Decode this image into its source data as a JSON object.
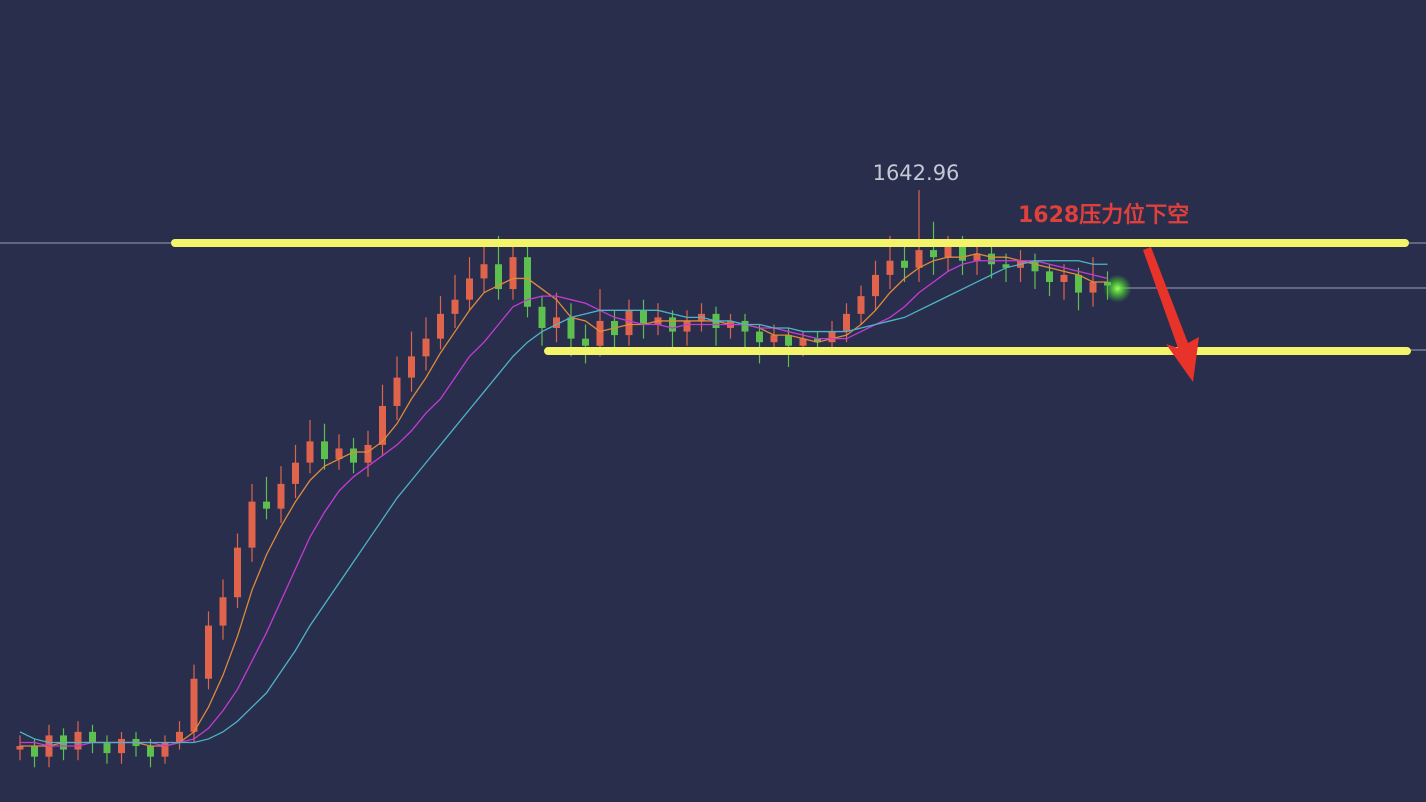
{
  "chart_data": {
    "type": "candlestick",
    "ylim": [
      1470.2,
      1696.6
    ],
    "up_color": "#e0644c",
    "down_color": "#5cbf4e",
    "open": [
      1485,
      1486,
      1483,
      1489,
      1485,
      1490,
      1487,
      1484,
      1488,
      1486,
      1483,
      1487,
      1490,
      1505,
      1520,
      1528,
      1542,
      1555,
      1553,
      1560,
      1566,
      1572,
      1567,
      1570,
      1566,
      1571,
      1582,
      1590,
      1596,
      1601,
      1608,
      1612,
      1618,
      1622,
      1615,
      1624,
      1610,
      1604,
      1607,
      1601,
      1599,
      1606,
      1602,
      1609,
      1605,
      1607,
      1603,
      1606,
      1608,
      1604,
      1606,
      1603,
      1600,
      1602,
      1599,
      1601,
      1600,
      1603,
      1608,
      1613,
      1619,
      1623,
      1621,
      1626,
      1624,
      1627,
      1623,
      1625,
      1622,
      1621,
      1623,
      1620,
      1617,
      1619,
      1614,
      1617
    ],
    "high": [
      1489,
      1488,
      1492,
      1491,
      1493,
      1492,
      1489,
      1490,
      1490,
      1488,
      1489,
      1493,
      1509,
      1524,
      1533,
      1546,
      1560,
      1562,
      1565,
      1571,
      1578,
      1577,
      1574,
      1573,
      1575,
      1588,
      1596,
      1603,
      1607,
      1613,
      1619,
      1624,
      1628,
      1630,
      1629,
      1627,
      1613,
      1614,
      1611,
      1605,
      1615,
      1609,
      1612,
      1612,
      1611,
      1609,
      1609,
      1611,
      1610,
      1608,
      1608,
      1605,
      1605,
      1604,
      1603,
      1603,
      1606,
      1611,
      1616,
      1623,
      1630,
      1627,
      1642.96,
      1634,
      1630,
      1630,
      1628,
      1627,
      1625,
      1626,
      1625,
      1622,
      1622,
      1621,
      1624,
      1620
    ],
    "low": [
      1482,
      1480,
      1480,
      1482,
      1482,
      1484,
      1481,
      1481,
      1483,
      1480,
      1481,
      1485,
      1487,
      1502,
      1516,
      1525,
      1538,
      1550,
      1549,
      1556,
      1563,
      1564,
      1564,
      1563,
      1562,
      1568,
      1578,
      1586,
      1592,
      1598,
      1604,
      1609,
      1614,
      1612,
      1612,
      1607,
      1599,
      1600,
      1596,
      1594,
      1596,
      1597,
      1599,
      1601,
      1602,
      1598,
      1599,
      1603,
      1599,
      1601,
      1598,
      1594,
      1597,
      1593,
      1596,
      1597,
      1598,
      1600,
      1605,
      1609,
      1615,
      1617,
      1617,
      1619,
      1620,
      1619,
      1619,
      1618,
      1617,
      1617,
      1615,
      1613,
      1612,
      1609,
      1610,
      1612
    ],
    "close": [
      1486,
      1483,
      1489,
      1485,
      1490,
      1487,
      1484,
      1488,
      1486,
      1483,
      1487,
      1490,
      1505,
      1520,
      1528,
      1542,
      1555,
      1553,
      1560,
      1566,
      1572,
      1567,
      1570,
      1566,
      1571,
      1582,
      1590,
      1596,
      1601,
      1608,
      1612,
      1618,
      1622,
      1615,
      1624,
      1610,
      1604,
      1607,
      1601,
      1599,
      1606,
      1602,
      1609,
      1605,
      1607,
      1603,
      1606,
      1608,
      1604,
      1606,
      1603,
      1600,
      1602,
      1599,
      1601,
      1600,
      1603,
      1608,
      1613,
      1619,
      1623,
      1621,
      1626,
      1624,
      1627,
      1623,
      1625,
      1622,
      1621,
      1623,
      1620,
      1617,
      1619,
      1614,
      1617,
      1616
    ],
    "series": [
      {
        "color": "#e08a3c",
        "values": [
          1486,
          1486,
          1486,
          1487,
          1487,
          1487,
          1487,
          1487,
          1487,
          1486,
          1486,
          1487,
          1490,
          1497,
          1506,
          1517,
          1530,
          1540,
          1548,
          1555,
          1561,
          1565,
          1567,
          1569,
          1569,
          1572,
          1577,
          1584,
          1590,
          1597,
          1603,
          1609,
          1614,
          1616,
          1618,
          1618,
          1615,
          1612,
          1607,
          1606,
          1603,
          1604,
          1605,
          1605,
          1606,
          1606,
          1606,
          1606,
          1606,
          1605,
          1605,
          1604,
          1602,
          1602,
          1601,
          1600,
          1601,
          1602,
          1605,
          1609,
          1614,
          1618,
          1621,
          1623,
          1624,
          1624,
          1625,
          1624,
          1624,
          1623,
          1622,
          1621,
          1620,
          1619,
          1617,
          1617
        ]
      },
      {
        "color": "#c63ad6",
        "values": [
          1487,
          1487,
          1486,
          1486,
          1486,
          1487,
          1487,
          1487,
          1487,
          1487,
          1486,
          1487,
          1488,
          1491,
          1496,
          1502,
          1510,
          1518,
          1527,
          1536,
          1545,
          1552,
          1558,
          1562,
          1565,
          1568,
          1571,
          1575,
          1580,
          1584,
          1590,
          1596,
          1600,
          1605,
          1610,
          1612,
          1613,
          1613,
          1612,
          1611,
          1609,
          1607,
          1606,
          1605,
          1605,
          1604,
          1605,
          1605,
          1605,
          1605,
          1605,
          1604,
          1604,
          1603,
          1602,
          1601,
          1601,
          1601,
          1603,
          1605,
          1607,
          1610,
          1614,
          1617,
          1620,
          1622,
          1623,
          1623,
          1623,
          1623,
          1623,
          1622,
          1621,
          1620,
          1619,
          1618
        ]
      },
      {
        "color": "#4fb3c8",
        "values": [
          1490,
          1488,
          1487,
          1487,
          1487,
          1487,
          1487,
          1487,
          1487,
          1487,
          1487,
          1487,
          1487,
          1488,
          1490,
          1493,
          1497,
          1501,
          1507,
          1513,
          1520,
          1526,
          1532,
          1538,
          1544,
          1550,
          1556,
          1561,
          1566,
          1571,
          1576,
          1581,
          1586,
          1591,
          1596,
          1600,
          1603,
          1605,
          1607,
          1608,
          1609,
          1609,
          1609,
          1609,
          1609,
          1608,
          1607,
          1607,
          1606,
          1606,
          1605,
          1605,
          1604,
          1604,
          1603,
          1603,
          1603,
          1603,
          1604,
          1605,
          1606,
          1607,
          1609,
          1611,
          1613,
          1615,
          1617,
          1619,
          1621,
          1622,
          1623,
          1623,
          1623,
          1623,
          1622,
          1622
        ]
      }
    ],
    "levels": [
      {
        "value": 1628,
        "color": "#f4f46a"
      },
      {
        "value": 1597.5,
        "color": "#f4f46a"
      }
    ],
    "guide_lines": [
      1628,
      1615.3,
      1597.8
    ],
    "high_label": "1642.96",
    "annotation": "1628压力位下空"
  }
}
